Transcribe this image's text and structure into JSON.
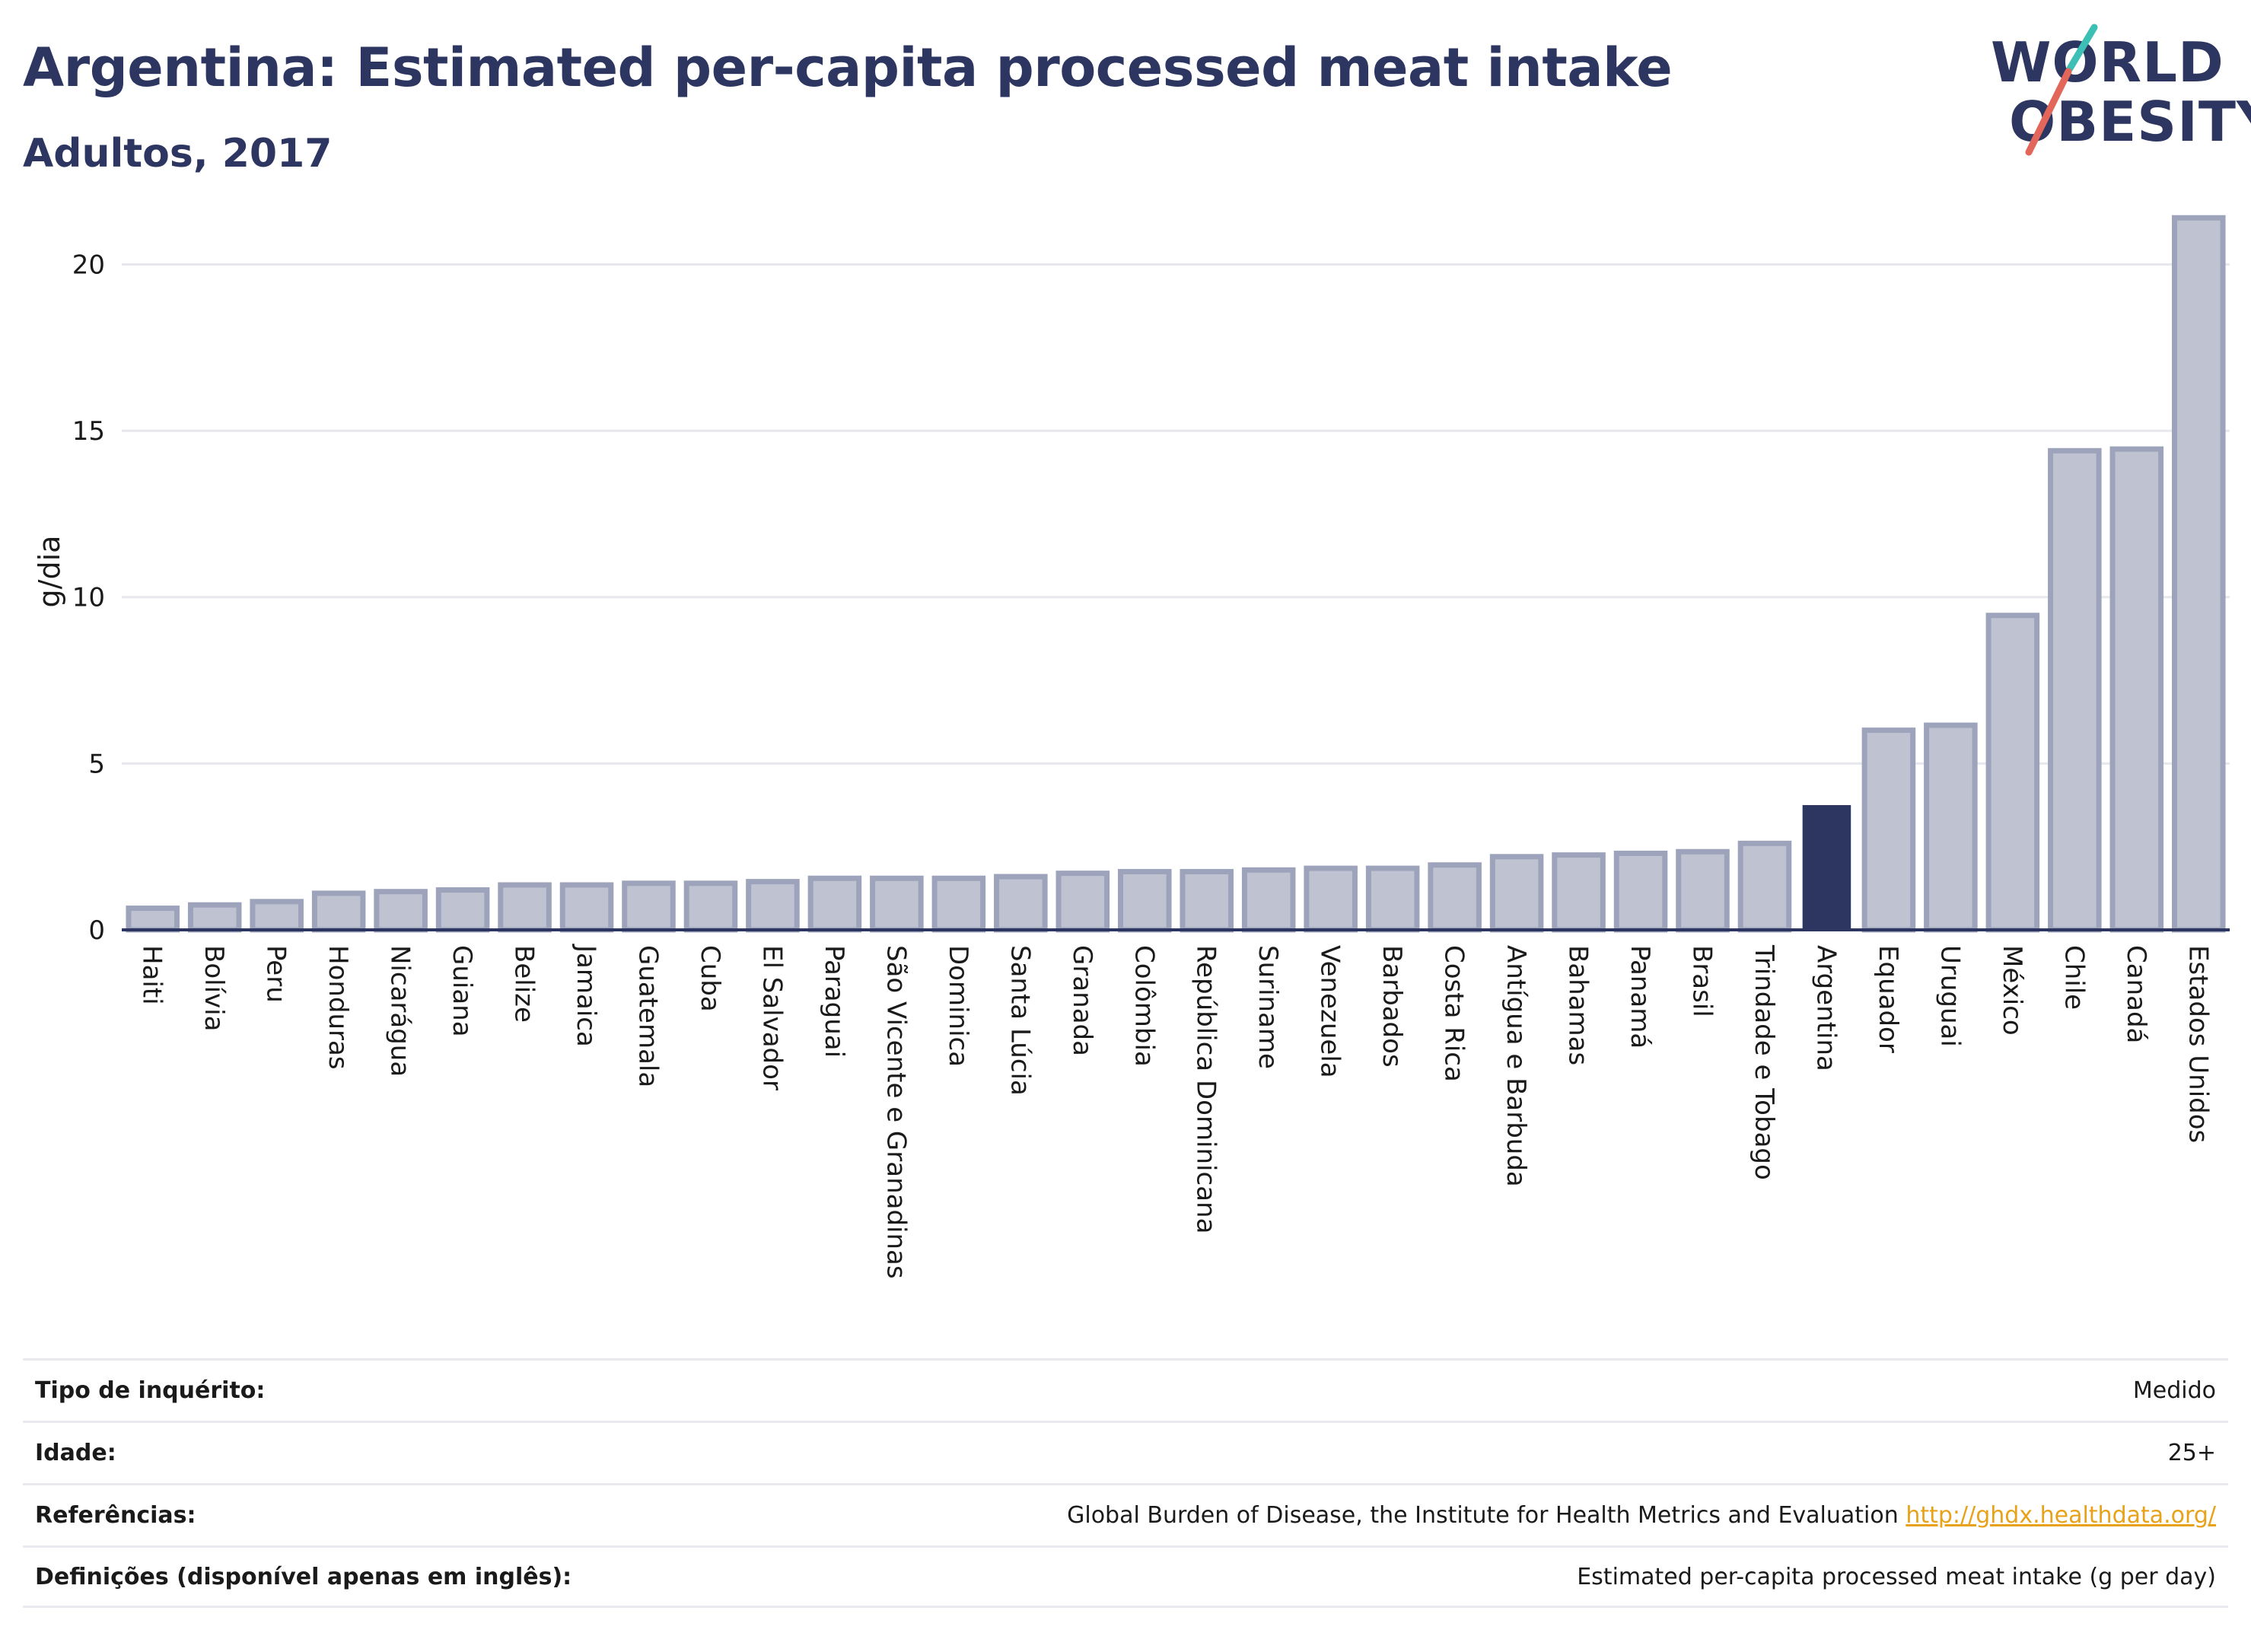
{
  "header": {
    "title": "Argentina: Estimated per-capita processed meat intake",
    "subtitle": "Adultos, 2017"
  },
  "logo": {
    "line1": "WORLD",
    "line2": "OBESITY",
    "accent_teal": "#3cbfb4",
    "accent_red": "#e2665a"
  },
  "colors": {
    "bar": "#bfc3d1",
    "bar_stroke": "#9da3ba",
    "highlight": "#2d3561",
    "text": "#2d3561"
  },
  "chart_data": {
    "type": "bar",
    "ylabel": "g/dia",
    "ylim": [
      0,
      22
    ],
    "yticks": [
      0,
      5,
      10,
      15,
      20
    ],
    "grid": true,
    "highlight": "Argentina",
    "categories": [
      "Haiti",
      "Bolívia",
      "Peru",
      "Honduras",
      "Nicarágua",
      "Guiana",
      "Belize",
      "Jamaica",
      "Guatemala",
      "Cuba",
      "El Salvador",
      "Paraguai",
      "São Vicente e Granadinas",
      "Dominica",
      "Santa Lúcia",
      "Granada",
      "Colômbia",
      "República Dominicana",
      "Suriname",
      "Venezuela",
      "Barbados",
      "Costa Rica",
      "Antígua e Barbuda",
      "Bahamas",
      "Panamá",
      "Brasil",
      "Trindade e Tobago",
      "Argentina",
      "Equador",
      "Uruguai",
      "México",
      "Chile",
      "Canadá",
      "Estados Unidos"
    ],
    "values": [
      0.65,
      0.75,
      0.85,
      1.1,
      1.15,
      1.2,
      1.35,
      1.35,
      1.4,
      1.4,
      1.45,
      1.55,
      1.55,
      1.55,
      1.6,
      1.7,
      1.75,
      1.75,
      1.8,
      1.85,
      1.85,
      1.95,
      2.2,
      2.25,
      2.3,
      2.35,
      2.6,
      3.75,
      6.0,
      6.15,
      9.45,
      14.4,
      14.45,
      21.4
    ]
  },
  "meta": {
    "survey_type_label": "Tipo de inquérito:",
    "survey_type_value": "Medido",
    "age_label": "Idade:",
    "age_value": "25+",
    "references_label": "Referências:",
    "references_value": "Global Burden of Disease, the Institute for Health Metrics and Evaluation",
    "references_link": "http://ghdx.healthdata.org/",
    "definitions_label": "Definições (disponível apenas em inglês):",
    "definitions_value": "Estimated per-capita processed meat intake (g per day)"
  }
}
